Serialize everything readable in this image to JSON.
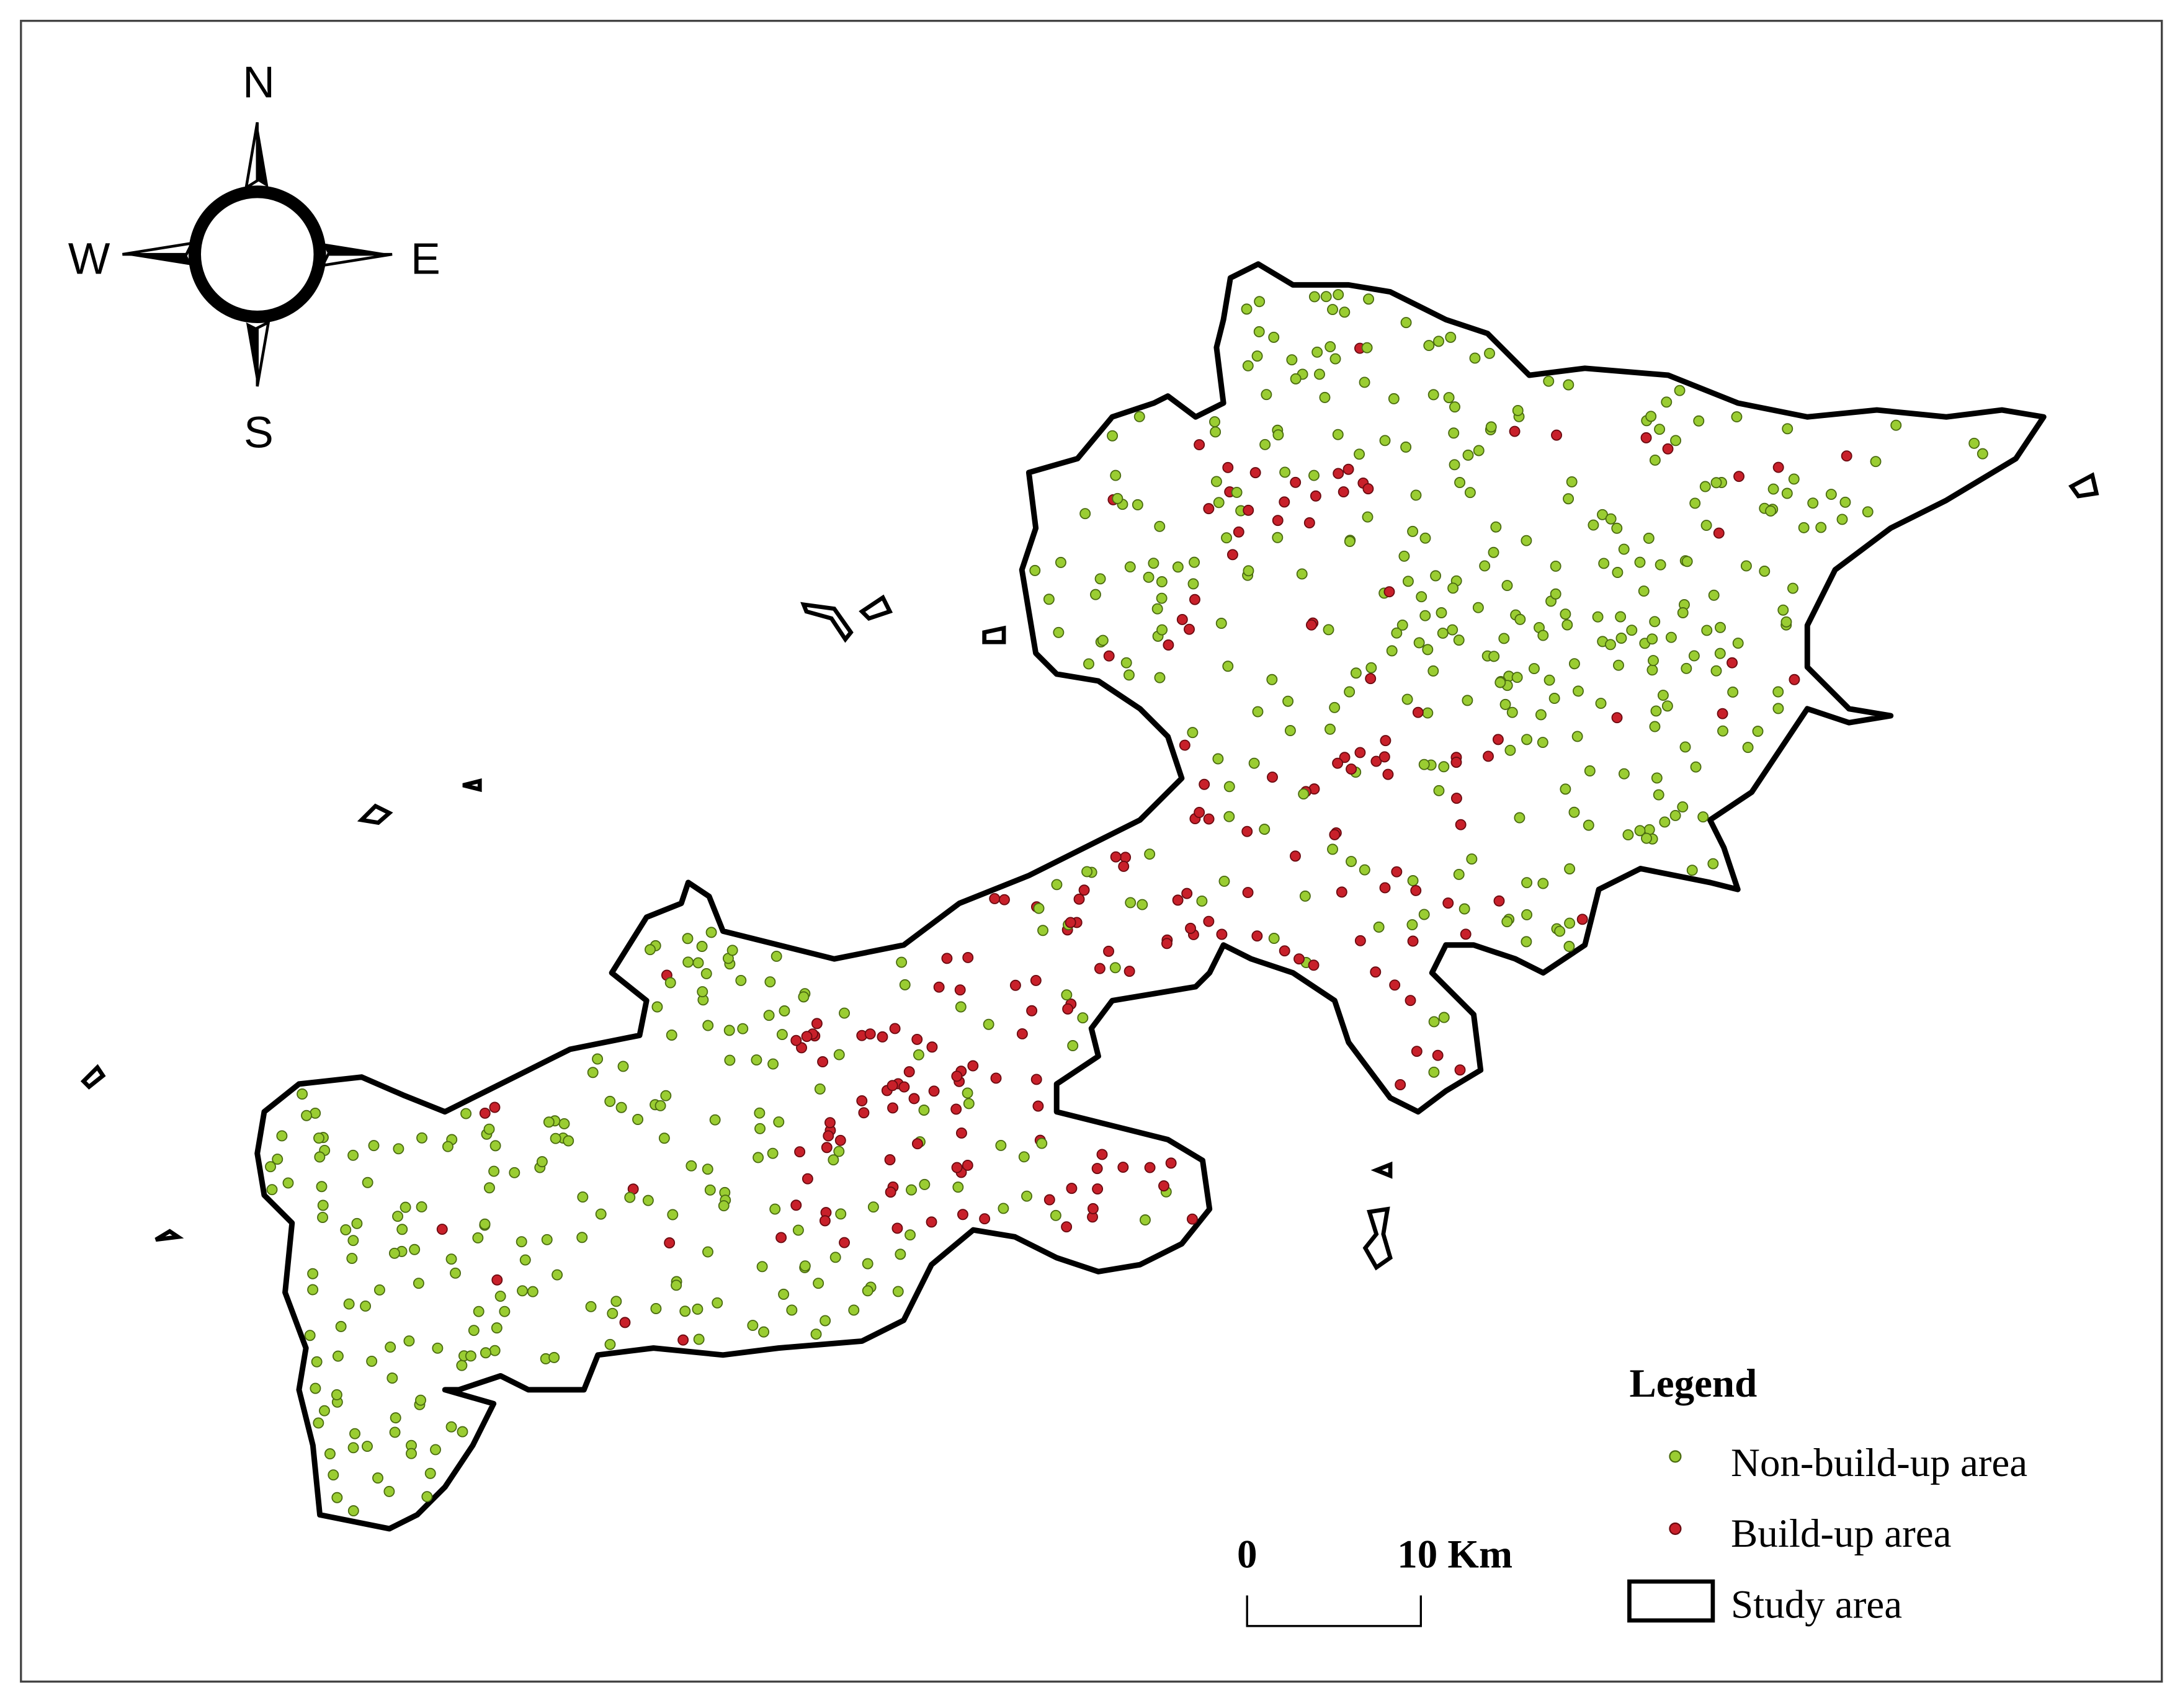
{
  "compass": {
    "north": "N",
    "east": "E",
    "south": "S",
    "west": "W"
  },
  "scale_bar": {
    "start": "0",
    "end": "10 Km"
  },
  "legend": {
    "title": "Legend",
    "items": [
      "Non-build-up area",
      "Build-up area",
      "Study area"
    ]
  }
}
